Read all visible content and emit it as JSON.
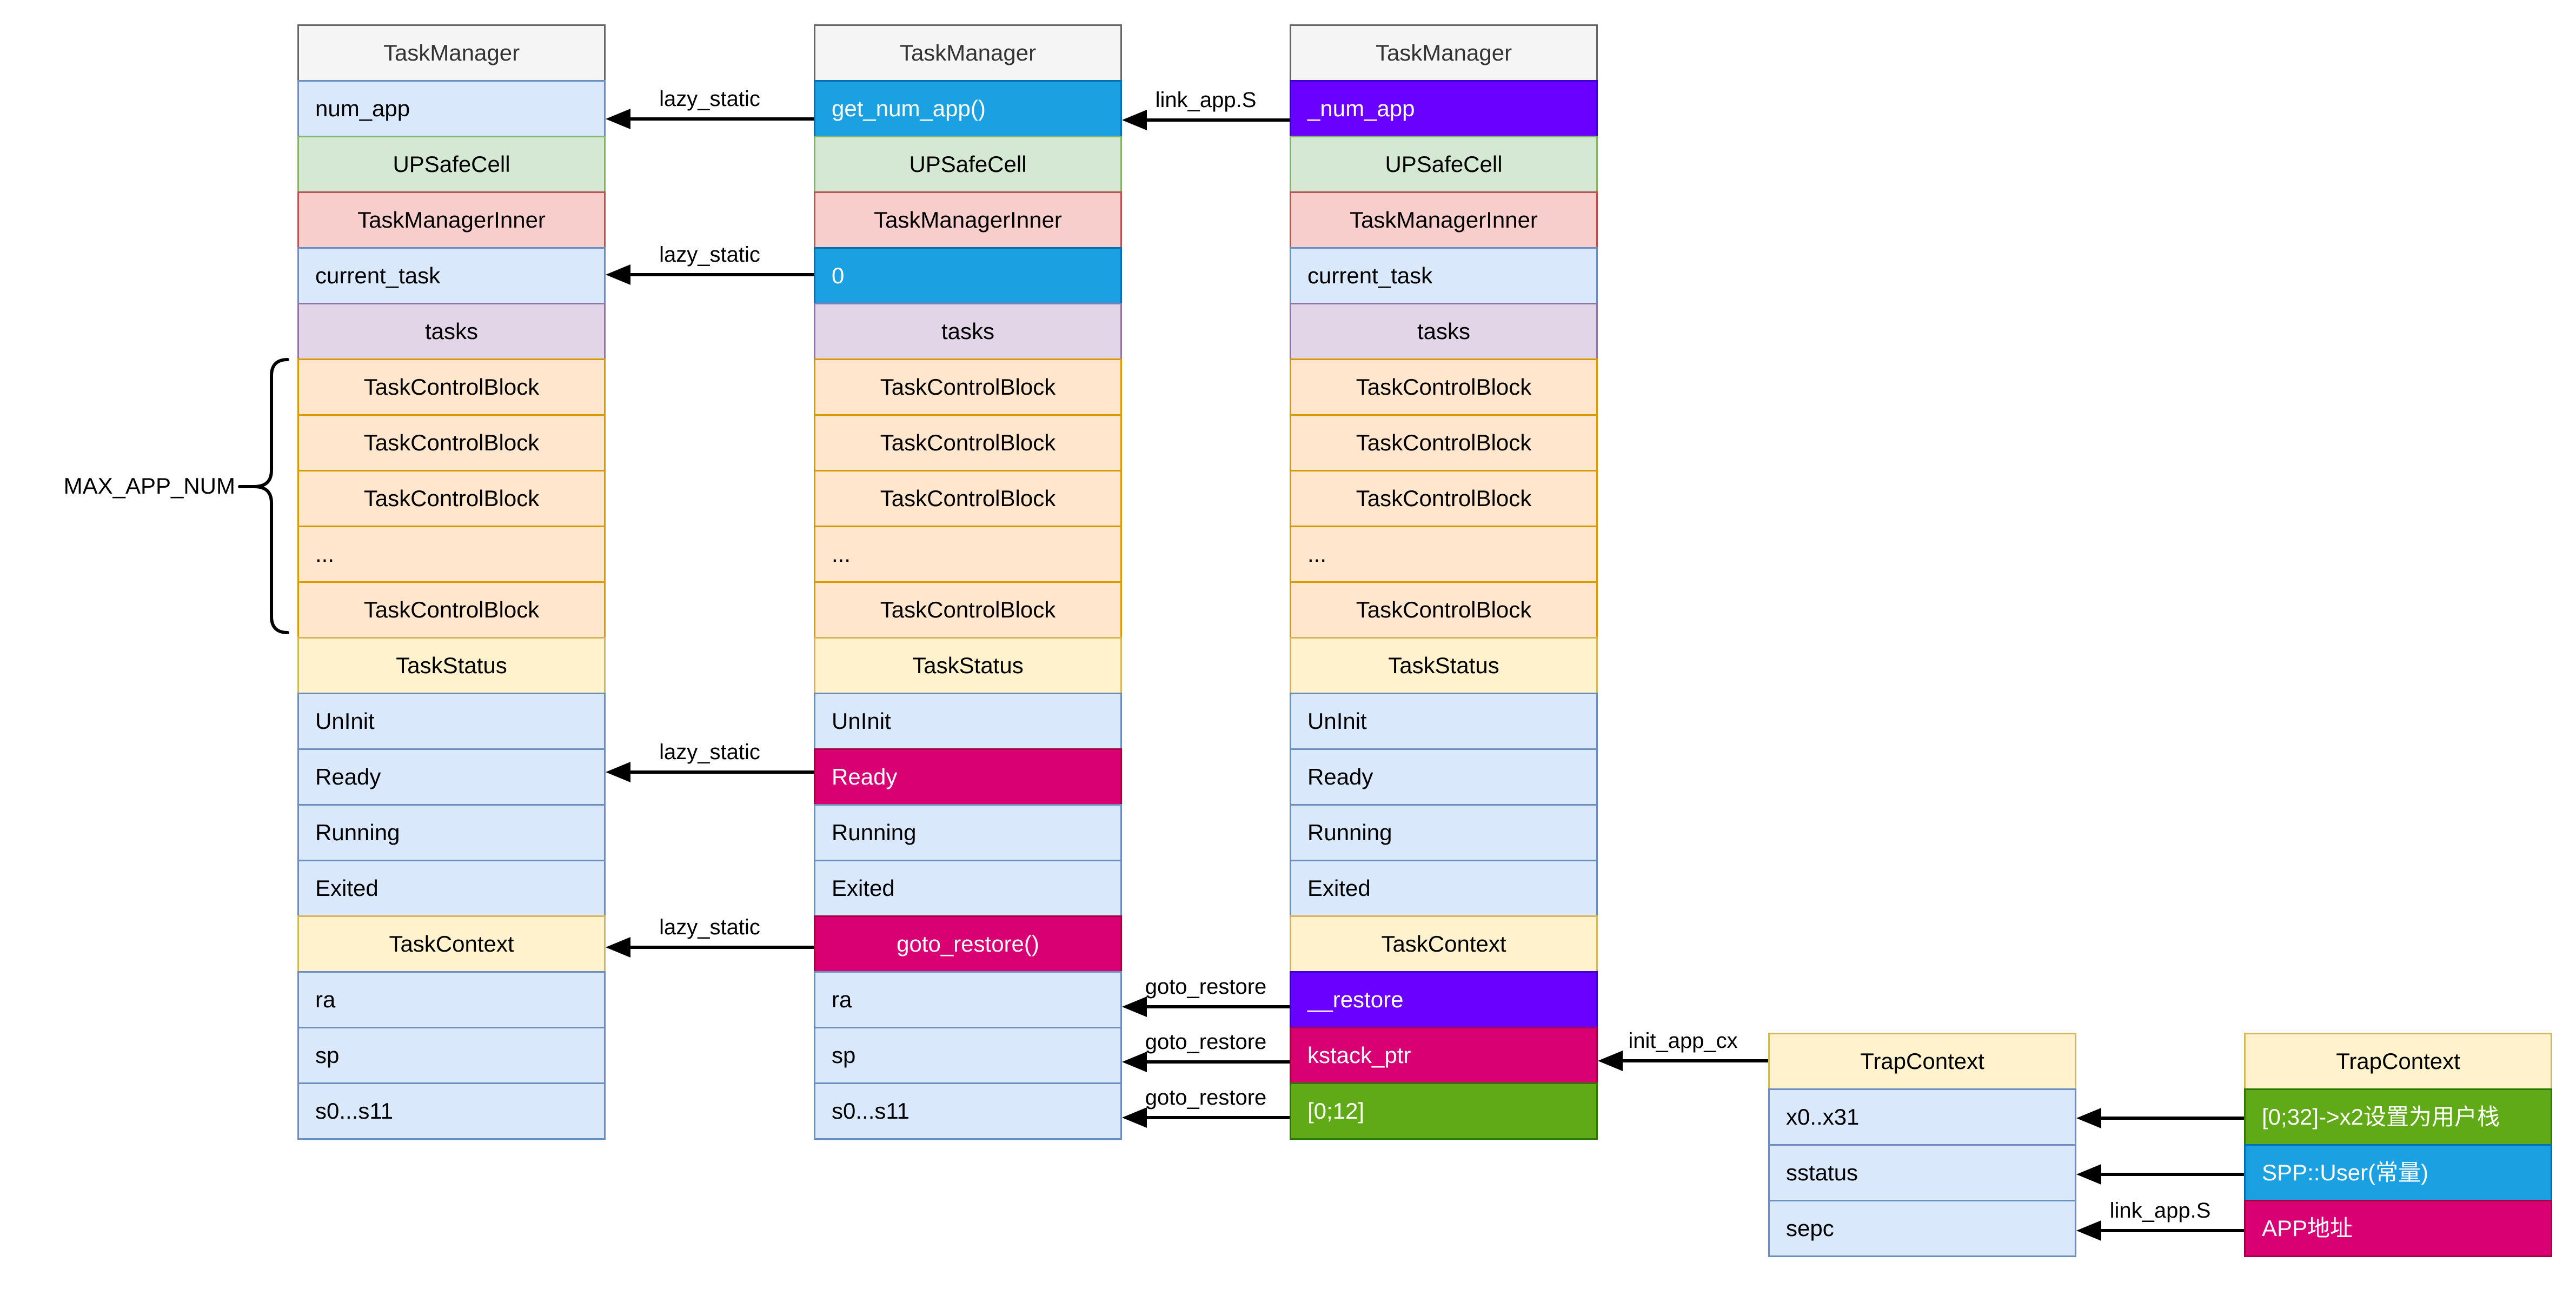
{
  "palette": {
    "header_fill": "#F5F5F5",
    "header_stroke": "#666666",
    "blue_fill": "#DAE8FC",
    "blue_stroke": "#6C8EBF",
    "green_fill": "#D5E8D4",
    "green_stroke": "#82B366",
    "red_fill": "#F8CECC",
    "red_stroke": "#B85450",
    "purple_fill": "#E1D5E7",
    "purple_stroke": "#9673A6",
    "orange_fill": "#FFE6CC",
    "orange_stroke": "#D79B00",
    "yellow_fill": "#FFF2CC",
    "yellow_stroke": "#D6B656",
    "bright_blue": "#1BA1E2",
    "bright_blue_stroke": "#006EAF",
    "magenta": "#D80073",
    "magenta_stroke": "#A50040",
    "violet": "#6A00FF",
    "violet_stroke": "#3700CC",
    "bright_green": "#60A917",
    "bright_green_stroke": "#2D7600",
    "arrow_color": "#000000"
  },
  "columns": [
    {
      "name": "taskmanager-struct-1",
      "rows": [
        {
          "label": "TaskManager",
          "style": "header",
          "align": "center"
        },
        {
          "label": "num_app",
          "style": "blue",
          "align": "left"
        },
        {
          "label": "UPSafeCell",
          "style": "green",
          "align": "center"
        },
        {
          "label": "TaskManagerInner",
          "style": "red",
          "align": "center"
        },
        {
          "label": "current_task",
          "style": "blue",
          "align": "left"
        },
        {
          "label": "tasks",
          "style": "purple",
          "align": "center"
        },
        {
          "label": "TaskControlBlock",
          "style": "orange",
          "align": "center"
        },
        {
          "label": "TaskControlBlock",
          "style": "orange",
          "align": "center"
        },
        {
          "label": "TaskControlBlock",
          "style": "orange",
          "align": "center"
        },
        {
          "label": "...",
          "style": "orange",
          "align": "left"
        },
        {
          "label": "TaskControlBlock",
          "style": "orange",
          "align": "center"
        },
        {
          "label": "TaskStatus",
          "style": "yellow",
          "align": "center"
        },
        {
          "label": "UnInit",
          "style": "blue",
          "align": "left"
        },
        {
          "label": "Ready",
          "style": "blue",
          "align": "left"
        },
        {
          "label": "Running",
          "style": "blue",
          "align": "left"
        },
        {
          "label": "Exited",
          "style": "blue",
          "align": "left"
        },
        {
          "label": "TaskContext",
          "style": "yellow",
          "align": "center"
        },
        {
          "label": "ra",
          "style": "blue",
          "align": "left"
        },
        {
          "label": "sp",
          "style": "blue",
          "align": "left"
        },
        {
          "label": "s0...s11",
          "style": "blue",
          "align": "left"
        }
      ]
    },
    {
      "name": "taskmanager-struct-2",
      "rows": [
        {
          "label": "TaskManager",
          "style": "header",
          "align": "center"
        },
        {
          "label": "get_num_app()",
          "style": "brightblue",
          "align": "left"
        },
        {
          "label": "UPSafeCell",
          "style": "green",
          "align": "center"
        },
        {
          "label": "TaskManagerInner",
          "style": "red",
          "align": "center"
        },
        {
          "label": "0",
          "style": "brightblue",
          "align": "left"
        },
        {
          "label": "tasks",
          "style": "purple",
          "align": "center"
        },
        {
          "label": "TaskControlBlock",
          "style": "orange",
          "align": "center"
        },
        {
          "label": "TaskControlBlock",
          "style": "orange",
          "align": "center"
        },
        {
          "label": "TaskControlBlock",
          "style": "orange",
          "align": "center"
        },
        {
          "label": "...",
          "style": "orange",
          "align": "left"
        },
        {
          "label": "TaskControlBlock",
          "style": "orange",
          "align": "center"
        },
        {
          "label": "TaskStatus",
          "style": "yellow",
          "align": "center"
        },
        {
          "label": "UnInit",
          "style": "blue",
          "align": "left"
        },
        {
          "label": "Ready",
          "style": "magenta",
          "align": "left"
        },
        {
          "label": "Running",
          "style": "blue",
          "align": "left"
        },
        {
          "label": "Exited",
          "style": "blue",
          "align": "left"
        },
        {
          "label": "goto_restore()",
          "style": "magenta",
          "align": "center"
        },
        {
          "label": "ra",
          "style": "blue",
          "align": "left"
        },
        {
          "label": "sp",
          "style": "blue",
          "align": "left"
        },
        {
          "label": "s0...s11",
          "style": "blue",
          "align": "left"
        }
      ]
    },
    {
      "name": "taskmanager-struct-3",
      "rows": [
        {
          "label": "TaskManager",
          "style": "header",
          "align": "center"
        },
        {
          "label": "_num_app",
          "style": "violet",
          "align": "left"
        },
        {
          "label": "UPSafeCell",
          "style": "green",
          "align": "center"
        },
        {
          "label": "TaskManagerInner",
          "style": "red",
          "align": "center"
        },
        {
          "label": "current_task",
          "style": "blue",
          "align": "left"
        },
        {
          "label": "tasks",
          "style": "purple",
          "align": "center"
        },
        {
          "label": "TaskControlBlock",
          "style": "orange",
          "align": "center"
        },
        {
          "label": "TaskControlBlock",
          "style": "orange",
          "align": "center"
        },
        {
          "label": "TaskControlBlock",
          "style": "orange",
          "align": "center"
        },
        {
          "label": "...",
          "style": "orange",
          "align": "left"
        },
        {
          "label": "TaskControlBlock",
          "style": "orange",
          "align": "center"
        },
        {
          "label": "TaskStatus",
          "style": "yellow",
          "align": "center"
        },
        {
          "label": "UnInit",
          "style": "blue",
          "align": "left"
        },
        {
          "label": "Ready",
          "style": "blue",
          "align": "left"
        },
        {
          "label": "Running",
          "style": "blue",
          "align": "left"
        },
        {
          "label": "Exited",
          "style": "blue",
          "align": "left"
        },
        {
          "label": "TaskContext",
          "style": "yellow",
          "align": "center"
        },
        {
          "label": "__restore",
          "style": "violet",
          "align": "left"
        },
        {
          "label": "kstack_ptr",
          "style": "magenta",
          "align": "left"
        },
        {
          "label": "[0;12]",
          "style": "brightgreen",
          "align": "left"
        }
      ]
    },
    {
      "name": "trapcontext-struct",
      "rows": [
        {
          "label": "TrapContext",
          "style": "yellow",
          "align": "center"
        },
        {
          "label": "x0..x31",
          "style": "blue",
          "align": "left"
        },
        {
          "label": "sstatus",
          "style": "blue",
          "align": "left"
        },
        {
          "label": "sepc",
          "style": "blue",
          "align": "left"
        }
      ]
    },
    {
      "name": "trapcontext-values",
      "rows": [
        {
          "label": "TrapContext",
          "style": "yellow",
          "align": "center"
        },
        {
          "label": "[0;32]->x2设置为用户栈",
          "style": "brightgreen",
          "align": "left"
        },
        {
          "label": "SPP::User(常量)",
          "style": "brightblue",
          "align": "left"
        },
        {
          "label": "APP地址",
          "style": "magenta",
          "align": "left"
        }
      ]
    }
  ],
  "arrows": [
    {
      "label": "lazy_static",
      "from": "get_num_app()",
      "to": "num_app"
    },
    {
      "label": "lazy_static",
      "from": "0",
      "to": "current_task"
    },
    {
      "label": "lazy_static",
      "from": "Ready",
      "to": "Ready"
    },
    {
      "label": "lazy_static",
      "from": "goto_restore()",
      "to": "TaskContext"
    },
    {
      "label": "link_app.S",
      "from": "_num_app",
      "to": "get_num_app()"
    },
    {
      "label": "goto_restore",
      "from": "__restore",
      "to": "ra"
    },
    {
      "label": "goto_restore",
      "from": "kstack_ptr",
      "to": "sp"
    },
    {
      "label": "goto_restore",
      "from": "[0;12]",
      "to": "s0...s11"
    },
    {
      "label": "init_app_cx",
      "from": "TrapContext",
      "to": "kstack_ptr"
    },
    {
      "label": "",
      "from": "[0;32]->x2设置为用户栈",
      "to": "x0..x31"
    },
    {
      "label": "",
      "from": "SPP::User(常量)",
      "to": "sstatus"
    },
    {
      "label": "link_app.S",
      "from": "APP地址",
      "to": "sepc"
    }
  ],
  "brace": {
    "label": "MAX_APP_NUM",
    "spans": "TaskControlBlock rows"
  }
}
